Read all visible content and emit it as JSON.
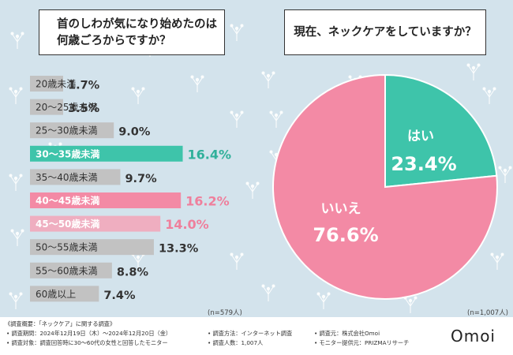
{
  "left_question": {
    "line1": "首のしわが気になり始めたのは",
    "line2": "何歳ごろからですか？"
  },
  "right_question": "現在、ネックケアをしていますか？",
  "left_n": "(n=579人)",
  "right_n": "(n=1,007人)",
  "colors": {
    "bar_gray": "#c2c2c2",
    "bar_teal": "#3ec4aa",
    "bar_pink": "#f38aa5",
    "bar_lightpink": "#efaec0",
    "pie_teal": "#3ec4aa",
    "pie_pink": "#f38aa5",
    "value_gray": "#333333",
    "value_teal": "#2fb09a",
    "value_pink": "#ef7f9c"
  },
  "chart_data": [
    {
      "type": "bar",
      "orientation": "horizontal",
      "title": "首のしわが気になり始めたのは何歳ごろからですか？",
      "categories": [
        "20歳未満",
        "20～25歳未満",
        "25～30歳未満",
        "30～35歳未満",
        "35～40歳未満",
        "40～45歳未満",
        "45～50歳未満",
        "50～55歳未満",
        "55～60歳未満",
        "60歳以上"
      ],
      "values": [
        1.7,
        3.5,
        9.0,
        16.4,
        9.7,
        16.2,
        14.0,
        13.3,
        8.8,
        7.4
      ],
      "labels": [
        "1.7%",
        "3.5%",
        "9.0%",
        "16.4%",
        "9.7%",
        "16.2%",
        "14.0%",
        "13.3%",
        "8.8%",
        "7.4%"
      ],
      "highlight": [
        "gray",
        "gray",
        "gray",
        "teal",
        "gray",
        "pink",
        "lightpink",
        "gray",
        "gray",
        "gray"
      ],
      "unit": "%",
      "n": 579
    },
    {
      "type": "pie",
      "title": "現在、ネックケアをしていますか？",
      "categories": [
        "はい",
        "いいえ"
      ],
      "values": [
        23.4,
        76.6
      ],
      "labels": [
        "23.4%",
        "76.6%"
      ],
      "unit": "%",
      "n": 1007
    }
  ],
  "footer": {
    "overview": "《調査概要：「ネックケア」に関する調査》",
    "period": "• 調査期間：2024年12月19日（木）～2024年12月20日（金）",
    "target": "• 調査対象：調査回答時に30～60代の女性と回答したモニター",
    "method": "• 調査方法：インターネット調査",
    "count": "• 調査人数：1,007人",
    "org": "• 調査元：株式会社Omoi",
    "provider": "• モニター提供元：PRIZMAリサーチ",
    "brand": "Omoi"
  }
}
